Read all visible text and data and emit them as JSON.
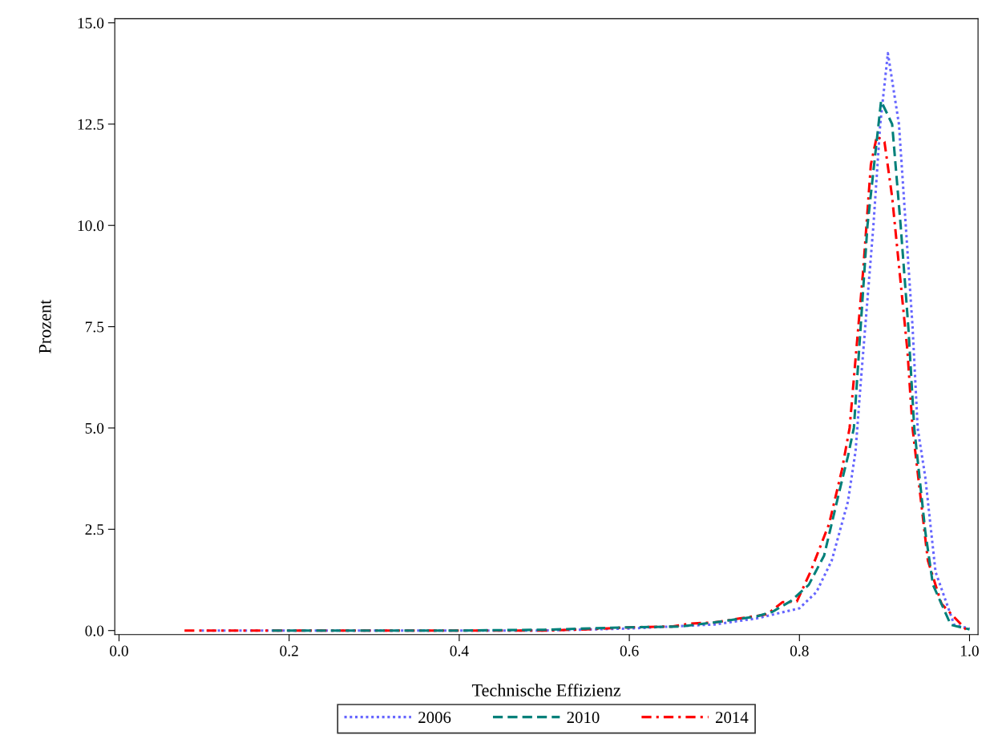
{
  "chart_data": {
    "type": "line",
    "xlabel": "Technische Effizienz",
    "ylabel": "Prozent",
    "xlim": [
      -0.005,
      1.01
    ],
    "ylim": [
      -0.1,
      15.1
    ],
    "xticks": [
      {
        "value": 0,
        "label": "0.0"
      },
      0.2,
      0.4,
      0.6,
      0.8,
      {
        "value": 1,
        "label": "1.0"
      }
    ],
    "yticks": [
      {
        "value": 0,
        "label": "0.0"
      },
      2.5,
      {
        "value": 5,
        "label": "5.0"
      },
      7.5,
      {
        "value": 10,
        "label": "10.0"
      },
      12.5,
      {
        "value": 15,
        "label": "15.0"
      }
    ],
    "grid": false,
    "legend": "bottom",
    "marker": "none",
    "series": [
      {
        "name": "2006",
        "color": "#6666ff",
        "line_style": "dotted",
        "x": [
          0.097,
          0.3,
          0.5,
          0.6,
          0.7,
          0.75,
          0.8,
          0.82,
          0.838,
          0.857,
          0.866,
          0.872,
          0.887,
          0.895,
          0.904,
          0.917,
          0.925,
          0.933,
          0.939,
          0.948,
          0.96,
          0.982,
          1.0
        ],
        "values": [
          0,
          0,
          0,
          0.05,
          0.15,
          0.3,
          0.55,
          0.95,
          1.73,
          3.18,
          4.43,
          6.1,
          10,
          12.5,
          14.25,
          12.5,
          10,
          7.5,
          5,
          3.78,
          1.45,
          0.14,
          0.05
        ]
      },
      {
        "name": "2010",
        "color": "#00807a",
        "line_style": "dashed",
        "x": [
          0.18,
          0.4,
          0.5,
          0.6,
          0.66,
          0.7,
          0.75,
          0.768,
          0.79,
          0.811,
          0.829,
          0.847,
          0.857,
          0.864,
          0.872,
          0.88,
          0.896,
          0.909,
          0.919,
          0.928,
          0.935,
          0.948,
          0.957,
          0.978,
          1.0
        ],
        "values": [
          0,
          0,
          0.02,
          0.08,
          0.1,
          0.2,
          0.35,
          0.46,
          0.73,
          1.13,
          1.85,
          3.44,
          4.3,
          5,
          7.5,
          10,
          13.07,
          12.5,
          10,
          7.5,
          5,
          2.44,
          1.13,
          0.14,
          0.03
        ]
      },
      {
        "name": "2014",
        "color": "#ff0000",
        "line_style": "dashdot",
        "x": [
          0.077,
          0.3,
          0.5,
          0.55,
          0.6,
          0.65,
          0.67,
          0.7,
          0.73,
          0.762,
          0.78,
          0.797,
          0.813,
          0.835,
          0.85,
          0.859,
          0.875,
          0.884,
          0.891,
          0.9,
          0.909,
          0.927,
          0.933,
          0.951,
          0.967,
          0.997
        ],
        "values": [
          0,
          0,
          0,
          0.03,
          0.08,
          0.1,
          0.17,
          0.2,
          0.3,
          0.4,
          0.7,
          0.72,
          1.45,
          2.64,
          3.97,
          5,
          8.9,
          11.5,
          12.2,
          12.06,
          10.7,
          6.9,
          5,
          1.73,
          0.66,
          0
        ]
      }
    ]
  }
}
